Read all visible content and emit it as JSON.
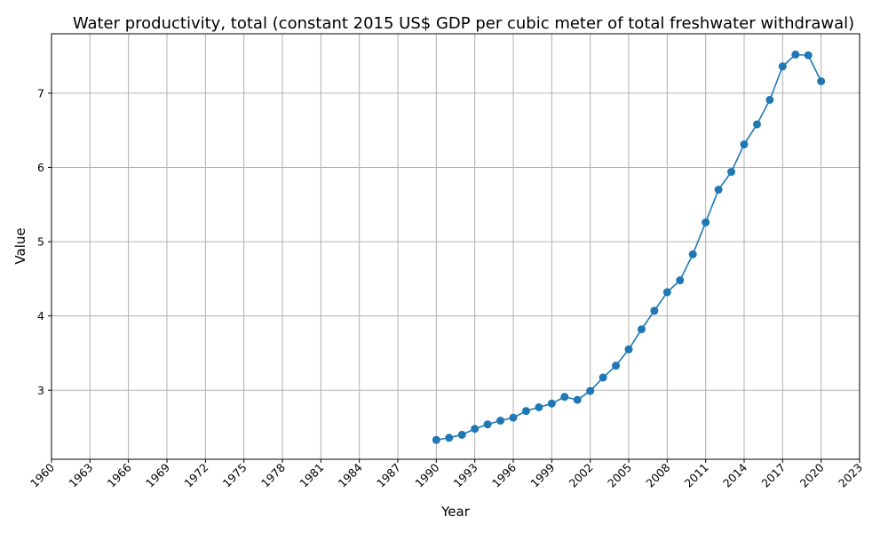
{
  "chart_data": {
    "type": "line",
    "title": "Water productivity, total (constant 2015 US$ GDP per cubic meter of total freshwater withdrawal)",
    "xlabel": "Year",
    "ylabel": "Value",
    "xlim": [
      1960,
      2023
    ],
    "ylim": [
      2.07,
      7.8
    ],
    "xticks": [
      "1960",
      "1963",
      "1966",
      "1969",
      "1972",
      "1975",
      "1978",
      "1981",
      "1984",
      "1987",
      "1990",
      "1993",
      "1996",
      "1999",
      "2002",
      "2005",
      "2008",
      "2011",
      "2014",
      "2017",
      "2020",
      "2023"
    ],
    "yticks": [
      "3",
      "4",
      "5",
      "6",
      "7"
    ],
    "grid": true,
    "color": "#1f77b4",
    "series": [
      {
        "x": [
          1990,
          1991,
          1992,
          1993,
          1994,
          1995,
          1996,
          1997,
          1998,
          1999,
          2000,
          2001,
          2002,
          2003,
          2004,
          2005,
          2006,
          2007,
          2008,
          2009,
          2010,
          2011,
          2012,
          2013,
          2014,
          2015,
          2016,
          2017,
          2018,
          2019,
          2020
        ],
        "values": [
          2.33,
          2.36,
          2.4,
          2.48,
          2.54,
          2.59,
          2.63,
          2.72,
          2.77,
          2.82,
          2.91,
          2.87,
          2.99,
          3.17,
          3.33,
          3.55,
          3.82,
          4.07,
          4.32,
          4.48,
          4.83,
          5.26,
          5.7,
          5.94,
          6.31,
          6.58,
          6.91,
          7.36,
          7.52,
          7.51,
          7.16
        ]
      }
    ]
  }
}
